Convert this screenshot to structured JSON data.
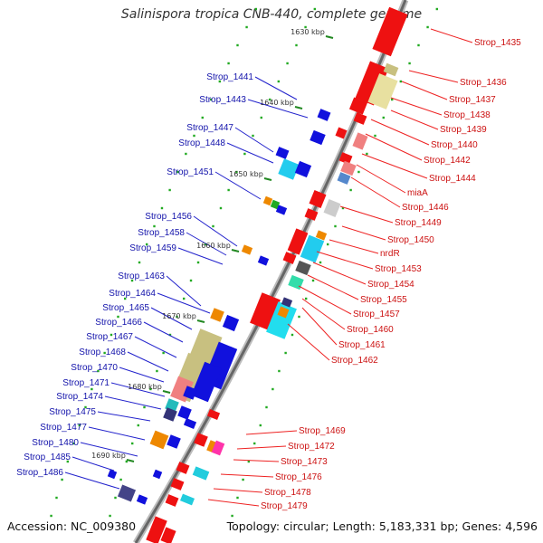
{
  "title": "Salinispora tropica CNB-440, complete genome",
  "footer": {
    "accession": "Accession: NC_009380",
    "summary": "Topology: circular; Length: 5,183,331 bp; Genes: 4,596"
  },
  "kbp_ticks": [
    "1630 kbp",
    "1640 kbp",
    "1650 kbp",
    "1660 kbp",
    "1670 kbp",
    "1680 kbp",
    "1690 kbp"
  ],
  "left_labels": [
    "Strop_1441",
    "Strop_1443",
    "Strop_1447",
    "Strop_1448",
    "Strop_1451",
    "Strop_1456",
    "Strop_1458",
    "Strop_1459",
    "Strop_1463",
    "Strop_1464",
    "Strop_1465",
    "Strop_1466",
    "Strop_1467",
    "Strop_1468",
    "Strop_1470",
    "Strop_1471",
    "Strop_1474",
    "Strop_1475",
    "Strop_1477",
    "Strop_1480",
    "Strop_1485",
    "Strop_1486"
  ],
  "right_labels": [
    "Strop_1435",
    "Strop_1436",
    "Strop_1437",
    "Strop_1438",
    "Strop_1439",
    "Strop_1440",
    "Strop_1442",
    "Strop_1444",
    "miaA",
    "Strop_1446",
    "Strop_1449",
    "Strop_1450",
    "nrdR",
    "Strop_1453",
    "Strop_1454",
    "Strop_1455",
    "Strop_1457",
    "Strop_1460",
    "Strop_1461",
    "Strop_1462",
    "Strop_1469",
    "Strop_1472",
    "Strop_1473",
    "Strop_1476",
    "Strop_1478",
    "Strop_1479"
  ],
  "colors": {
    "forward_strand": "#ee1111",
    "reverse_strand": "#1111dd",
    "backbone": "#777777",
    "tick": "#228822"
  }
}
